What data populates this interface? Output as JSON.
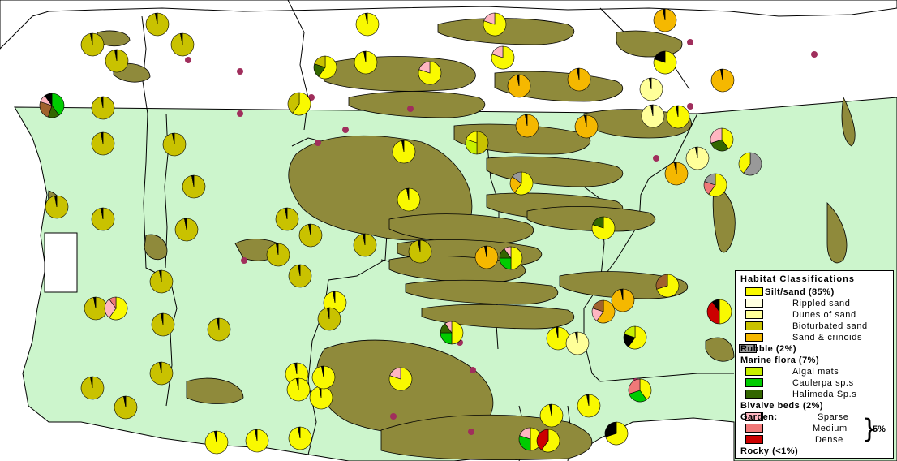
{
  "map": {
    "colors": {
      "sea": "#ffffff",
      "study_area": "#ccf5cc",
      "land": "#8f8a3b",
      "boundary": "#000000",
      "site_dot": "#a02e5c"
    }
  },
  "legend": {
    "title": "Habitat Classifications",
    "groups": [
      {
        "label": "Silt/sand (85%)",
        "color": "#f9f900",
        "items": [
          {
            "label": "Rippled sand",
            "color": "#ffffe0"
          },
          {
            "label": "Dunes of sand",
            "color": "#ffff99"
          },
          {
            "label": "Bioturbated sand",
            "color": "#c9c200"
          },
          {
            "label": "Sand & crinoids",
            "color": "#f5b800"
          }
        ]
      },
      {
        "label": "Rubble (2%)",
        "color": "#999999",
        "items": []
      },
      {
        "label": "Marine flora (7%)",
        "color": "#99e699",
        "items": [
          {
            "label": "Algal mats",
            "color": "#c8f000"
          },
          {
            "label": "Caulerpa sp.s",
            "color": "#00cc00"
          },
          {
            "label": "Halimeda Sp.s",
            "color": "#336600"
          }
        ]
      },
      {
        "label": "Bivalve beds (2%)",
        "color": "#a0622d",
        "items": []
      }
    ],
    "garden": {
      "label": "Garden:",
      "items": [
        {
          "label": "Sparse",
          "color": "#ffb6c1"
        },
        {
          "label": "Medium",
          "color": "#f07878"
        },
        {
          "label": "Dense",
          "color": "#cc0000"
        }
      ],
      "total": "5%"
    },
    "rocky": {
      "label": "Rocky (<1%)",
      "color": "#000000"
    }
  }
}
